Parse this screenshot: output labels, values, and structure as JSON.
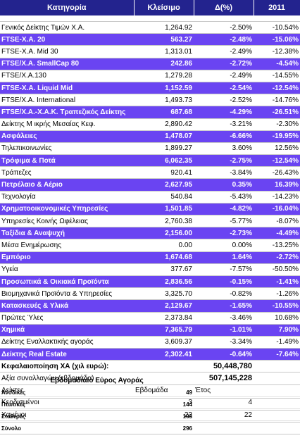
{
  "headers": {
    "category": "Κατηγορία",
    "close": "Κλείσιμο",
    "change": "Δ(%)",
    "ytd": "2011"
  },
  "colors": {
    "header_bg": "#23238e",
    "highlight_bg": "#6a44f2",
    "text_on_dark": "#ffffff"
  },
  "rows": [
    {
      "name": "Γενικός Δείκτης Τιμών Χ.Α.",
      "close": "1,264.92",
      "change": "-2.50%",
      "ytd": "-10.54%",
      "hl": false
    },
    {
      "name": "FTSE-X.A. 20",
      "close": "563.27",
      "change": "-2.48%",
      "ytd": "-15.06%",
      "hl": true
    },
    {
      "name": "FTSE-X.A. Mid 30",
      "close": "1,313.01",
      "change": "-2.49%",
      "ytd": "-12.38%",
      "hl": false
    },
    {
      "name": "FTSE/X.A. SmallCap 80",
      "close": "242.86",
      "change": "-2.72%",
      "ytd": "-4.54%",
      "hl": true
    },
    {
      "name": "FTSE/X.A.130",
      "close": "1,279.28",
      "change": "-2.49%",
      "ytd": "-14.55%",
      "hl": false
    },
    {
      "name": "FTSE-X.A. Liquid Mid",
      "close": "1,152.59",
      "change": "-2.54%",
      "ytd": "-12.54%",
      "hl": true
    },
    {
      "name": "FTSE/X.A. International",
      "close": "1,493.73",
      "change": "-2.52%",
      "ytd": "-14.76%",
      "hl": false
    },
    {
      "name": "FTSE/X.A.-X.A.K. Τραπεζικός Δείκτης",
      "close": "687.68",
      "change": "-4.29%",
      "ytd": "-26.51%",
      "hl": true
    },
    {
      "name": "Δείκτης Μ ικρής Μεσαίας Κεφ.",
      "close": "2,890.42",
      "change": "-3.21%",
      "ytd": "-2.30%",
      "hl": false
    },
    {
      "name": "Ασφάλειες",
      "close": "1,478.07",
      "change": "-6.66%",
      "ytd": "-19.95%",
      "hl": true
    },
    {
      "name": "Τηλεπικοινωνίες",
      "close": "1,899.27",
      "change": "3.60%",
      "ytd": "12.56%",
      "hl": false
    },
    {
      "name": "Τρόφιμα & Ποτά",
      "close": "6,062.35",
      "change": "-2.75%",
      "ytd": "-12.54%",
      "hl": true
    },
    {
      "name": "Τράπεζες",
      "close": "920.41",
      "change": "-3.84%",
      "ytd": "-26.43%",
      "hl": false
    },
    {
      "name": "Πετρέλαιο & Αέριο",
      "close": "2,627.95",
      "change": "0.35%",
      "ytd": "16.39%",
      "hl": true
    },
    {
      "name": "Τεχνολογία",
      "close": "540.84",
      "change": "-5.43%",
      "ytd": "-14.23%",
      "hl": false
    },
    {
      "name": "Χρηματοοικονομικές Υπηρεσίες",
      "close": "1,501.85",
      "change": "-4.82%",
      "ytd": "-16.04%",
      "hl": true
    },
    {
      "name": "Υπηρεσίες Κοινής Ωφέλειας",
      "close": "2,760.38",
      "change": "-5.77%",
      "ytd": "-8.07%",
      "hl": false
    },
    {
      "name": "Ταξίδια & Αναψυχή",
      "close": "2,156.00",
      "change": "-2.73%",
      "ytd": "-4.49%",
      "hl": true
    },
    {
      "name": "Μέσα Ενημέρωσης",
      "close": "0.00",
      "change": "0.00%",
      "ytd": "-13.25%",
      "hl": false
    },
    {
      "name": "Εμπόριο",
      "close": "1,674.68",
      "change": "1.64%",
      "ytd": "-2.72%",
      "hl": true
    },
    {
      "name": "Υγεία",
      "close": "377.67",
      "change": "-7.57%",
      "ytd": "-50.50%",
      "hl": false
    },
    {
      "name": "Προσωπικά & Οικιακά Προϊόντα",
      "close": "2,836.56",
      "change": "-0.15%",
      "ytd": "-1.41%",
      "hl": true
    },
    {
      "name": "Βιομηχανικά Προϊόντα & Υπηρεσίες",
      "close": "3,325.70",
      "change": "-0.82%",
      "ytd": "-1.26%",
      "hl": false
    },
    {
      "name": "Κατασκευές & Υλικά",
      "close": "2,129.67",
      "change": "-1.65%",
      "ytd": "-10.55%",
      "hl": true
    },
    {
      "name": "Πρώτες Ύλες",
      "close": "2,373.84",
      "change": "-3.46%",
      "ytd": "10.68%",
      "hl": false
    },
    {
      "name": "Χημικά",
      "close": "7,365.79",
      "change": "-1.01%",
      "ytd": "7.90%",
      "hl": true
    },
    {
      "name": "Δείκτης Εναλλακτικής αγοράς",
      "close": "3,609.37",
      "change": "-3.34%",
      "ytd": "-1.49%",
      "hl": false
    },
    {
      "name": "Δείκτης Real Estate",
      "close": "2,302.41",
      "change": "-0.64%",
      "ytd": "-7.64%",
      "hl": true
    }
  ],
  "summary": {
    "cap_label": "Κεφαλαιοποίηση ΧΑ (χιλ ευρώ):",
    "cap_value": "50,448,780",
    "vol_label": "Αξία συναλλαγών (εβδομάδα)",
    "vol_value": "507,145,228"
  },
  "counts": {
    "label": "Δείκτες",
    "week_label": "Εβδομάδα",
    "year_label": "Έτος",
    "gainers_label": "Κερδισμένοι",
    "gainers_week": "3",
    "gainers_year": "4",
    "losers_label": "Χαμένοι",
    "losers_week": "22",
    "losers_year": "22"
  },
  "breadth": {
    "title": "Εβδομαδιαίο Εύρος Αγοράς",
    "advances_label": "Ανοδικές",
    "advances_value": "49",
    "declines_label": "Πτωτικές",
    "declines_value": "144",
    "unchanged_label": "Σταθερές",
    "unchanged_value": "103",
    "total_label": "Σύνολο",
    "total_value": "296"
  }
}
